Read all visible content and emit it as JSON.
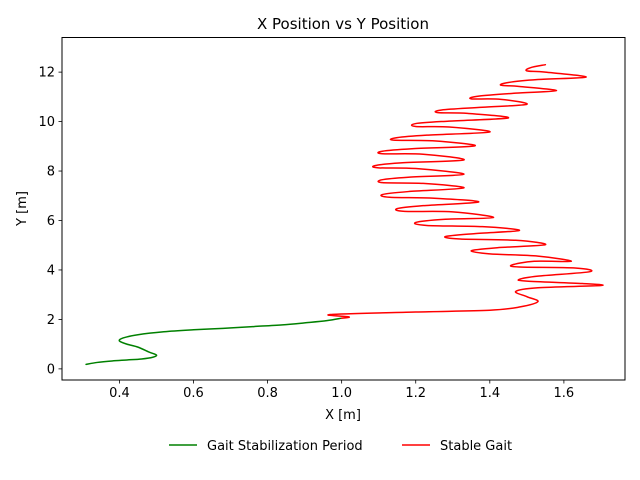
{
  "chart_data": {
    "type": "line",
    "title": "X Position vs Y Position",
    "xlabel": "X [m]",
    "ylabel": "Y [m]",
    "xlim": [
      0.245,
      1.765
    ],
    "ylim": [
      -0.45,
      13.4
    ],
    "xticks": [
      0.4,
      0.6,
      0.8,
      1.0,
      1.2,
      1.4,
      1.6
    ],
    "yticks": [
      0,
      2,
      4,
      6,
      8,
      10,
      12
    ],
    "grid": false,
    "legend_position": "bottom-center, below plot",
    "series": [
      {
        "name": "Gait Stabilization Period",
        "color": "#008000",
        "x": [
          0.31,
          0.34,
          0.38,
          0.42,
          0.46,
          0.49,
          0.5,
          0.48,
          0.45,
          0.42,
          0.4,
          0.41,
          0.45,
          0.52,
          0.6,
          0.68,
          0.76,
          0.84,
          0.9,
          0.96,
          1.0
        ],
        "y": [
          0.18,
          0.26,
          0.32,
          0.36,
          0.4,
          0.47,
          0.56,
          0.68,
          0.88,
          1.0,
          1.13,
          1.25,
          1.38,
          1.5,
          1.58,
          1.64,
          1.71,
          1.78,
          1.86,
          1.95,
          2.05
        ]
      },
      {
        "name": "Stable Gait",
        "color": "#ff0000",
        "x": [
          1.0,
          1.02,
          0.97,
          1.2,
          1.4,
          1.48,
          1.53,
          1.5,
          1.47,
          1.53,
          1.7,
          1.65,
          1.5,
          1.48,
          1.53,
          1.67,
          1.63,
          1.48,
          1.46,
          1.52,
          1.62,
          1.53,
          1.4,
          1.35,
          1.42,
          1.55,
          1.47,
          1.32,
          1.28,
          1.36,
          1.48,
          1.38,
          1.23,
          1.2,
          1.28,
          1.41,
          1.3,
          1.17,
          1.15,
          1.22,
          1.37,
          1.25,
          1.13,
          1.11,
          1.18,
          1.33,
          1.22,
          1.11,
          1.11,
          1.18,
          1.33,
          1.2,
          1.1,
          1.09,
          1.16,
          1.33,
          1.22,
          1.11,
          1.11,
          1.19,
          1.36,
          1.25,
          1.14,
          1.15,
          1.23,
          1.4,
          1.29,
          1.2,
          1.2,
          1.29,
          1.45,
          1.34,
          1.26,
          1.27,
          1.38,
          1.5,
          1.43,
          1.35,
          1.37,
          1.47,
          1.58,
          1.48,
          1.43,
          1.45,
          1.53,
          1.66,
          1.55,
          1.5,
          1.51,
          1.55
        ],
        "y": [
          2.05,
          2.1,
          2.2,
          2.3,
          2.37,
          2.5,
          2.72,
          2.92,
          3.13,
          3.28,
          3.37,
          3.45,
          3.55,
          3.62,
          3.75,
          3.93,
          4.08,
          4.12,
          4.2,
          4.35,
          4.35,
          4.56,
          4.65,
          4.78,
          4.9,
          5.02,
          5.2,
          5.25,
          5.35,
          5.47,
          5.6,
          5.75,
          5.8,
          5.92,
          6.05,
          6.12,
          6.35,
          6.37,
          6.48,
          6.6,
          6.75,
          6.9,
          6.94,
          7.05,
          7.17,
          7.32,
          7.5,
          7.53,
          7.65,
          7.75,
          7.87,
          8.1,
          8.13,
          8.22,
          8.33,
          8.45,
          8.68,
          8.7,
          8.8,
          8.9,
          9.02,
          9.22,
          9.25,
          9.35,
          9.45,
          9.58,
          9.78,
          9.8,
          9.92,
          10.02,
          10.15,
          10.33,
          10.36,
          10.47,
          10.58,
          10.7,
          10.9,
          10.92,
          11.03,
          11.15,
          11.25,
          11.42,
          11.47,
          11.58,
          11.7,
          11.8,
          12.0,
          12.05,
          12.18,
          12.3
        ]
      }
    ]
  }
}
